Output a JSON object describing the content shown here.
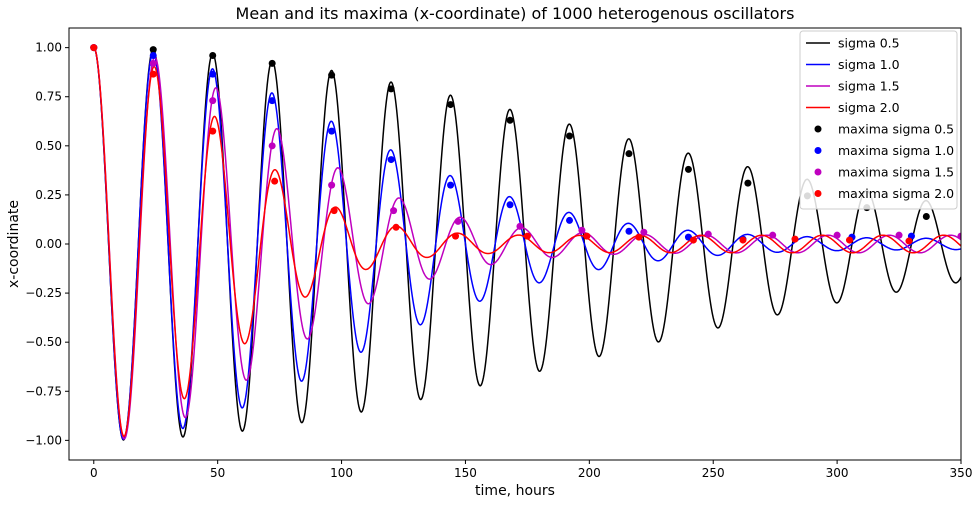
{
  "chart_data": {
    "type": "line",
    "title": "Mean and its maxima (x-coordinate) of 1000 heterogenous oscillators",
    "xlabel": "time, hours",
    "ylabel": "x-coordinate",
    "xlim": [
      -10,
      350
    ],
    "ylim": [
      -1.1,
      1.1
    ],
    "xticks": [
      0,
      50,
      100,
      150,
      200,
      250,
      300,
      350
    ],
    "yticks": [
      -1.0,
      -0.75,
      -0.5,
      -0.25,
      0.0,
      0.25,
      0.5,
      0.75,
      1.0
    ],
    "ytick_labels": [
      "−1.00",
      "−0.75",
      "−0.50",
      "−0.25",
      "0.00",
      "0.25",
      "0.50",
      "0.75",
      "1.00"
    ],
    "xtick_labels": [
      "0",
      "50",
      "100",
      "150",
      "200",
      "250",
      "300",
      "350"
    ],
    "grid": false,
    "legend_position": "top-right",
    "series": [
      {
        "name": "sigma 0.5",
        "color": "#000000",
        "sigma": 0.5,
        "period": 24,
        "revival_times": [],
        "revival_amps": []
      },
      {
        "name": "sigma 1.0",
        "color": "#0000ff",
        "sigma": 1.0,
        "period": 24,
        "revival_times": [],
        "revival_amps": []
      },
      {
        "name": "sigma 1.5",
        "color": "#bf00bf",
        "sigma": 1.5,
        "period": 24.7,
        "revival_times": [],
        "revival_amps": []
      },
      {
        "name": "sigma 2.0",
        "color": "#ff0000",
        "sigma": 2.0,
        "period": 24.5,
        "revival_times": [],
        "revival_amps": []
      }
    ],
    "maxima": [
      {
        "name": "maxima sigma 0.5",
        "color": "#000000",
        "x": [
          0,
          24,
          48,
          72,
          96,
          120,
          144,
          168,
          192,
          216,
          240,
          264,
          288,
          312,
          336
        ],
        "y": [
          1.0,
          0.99,
          0.96,
          0.92,
          0.86,
          0.79,
          0.71,
          0.63,
          0.55,
          0.46,
          0.38,
          0.31,
          0.245,
          0.185,
          0.14
        ]
      },
      {
        "name": "maxima sigma 1.0",
        "color": "#0000ff",
        "x": [
          0,
          24,
          48,
          72,
          96,
          120,
          144,
          168,
          192,
          216,
          240,
          262,
          306,
          330
        ],
        "y": [
          1.0,
          0.96,
          0.865,
          0.73,
          0.575,
          0.43,
          0.3,
          0.2,
          0.12,
          0.065,
          0.035,
          0.025,
          0.035,
          0.04
        ]
      },
      {
        "name": "maxima sigma 1.5",
        "color": "#bf00bf",
        "x": [
          0,
          24,
          48,
          72,
          96,
          121,
          147,
          172,
          197,
          222,
          248,
          274,
          300,
          325,
          350
        ],
        "y": [
          1.0,
          0.92,
          0.73,
          0.5,
          0.3,
          0.17,
          0.115,
          0.09,
          0.07,
          0.06,
          0.05,
          0.045,
          0.045,
          0.045,
          0.04
        ]
      },
      {
        "name": "maxima sigma 2.0",
        "color": "#ff0000",
        "x": [
          0,
          24,
          48,
          73,
          97,
          122,
          146,
          175,
          199,
          220,
          242,
          262,
          283,
          305,
          329
        ],
        "y": [
          1.0,
          0.865,
          0.575,
          0.32,
          0.17,
          0.085,
          0.04,
          0.04,
          0.04,
          0.035,
          0.02,
          0.02,
          0.025,
          0.02,
          0.015
        ]
      }
    ]
  }
}
